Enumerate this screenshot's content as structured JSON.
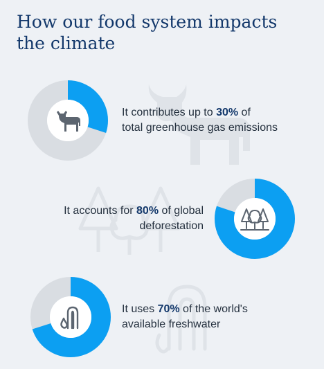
{
  "title": "How our food system impacts the climate",
  "colors": {
    "accent": "#0c9ff2",
    "track": "#d9dde2",
    "icon": "#5c6570",
    "decoration": "#dfe3e8",
    "title": "#13386b"
  },
  "items": [
    {
      "icon": "cow-icon",
      "percent": 30,
      "text_before": "It contributes up to ",
      "highlight": "30%",
      "text_after": " of",
      "line2": "total greenhouse gas emissions"
    },
    {
      "icon": "trees-icon",
      "percent": 80,
      "text_before": "It accounts for ",
      "highlight": "80%",
      "text_after": " of global",
      "line2": "deforestation"
    },
    {
      "icon": "water-tap-icon",
      "percent": 70,
      "text_before": "It uses ",
      "highlight": "70%",
      "text_after": " of the world's",
      "line2": "available freshwater"
    }
  ]
}
